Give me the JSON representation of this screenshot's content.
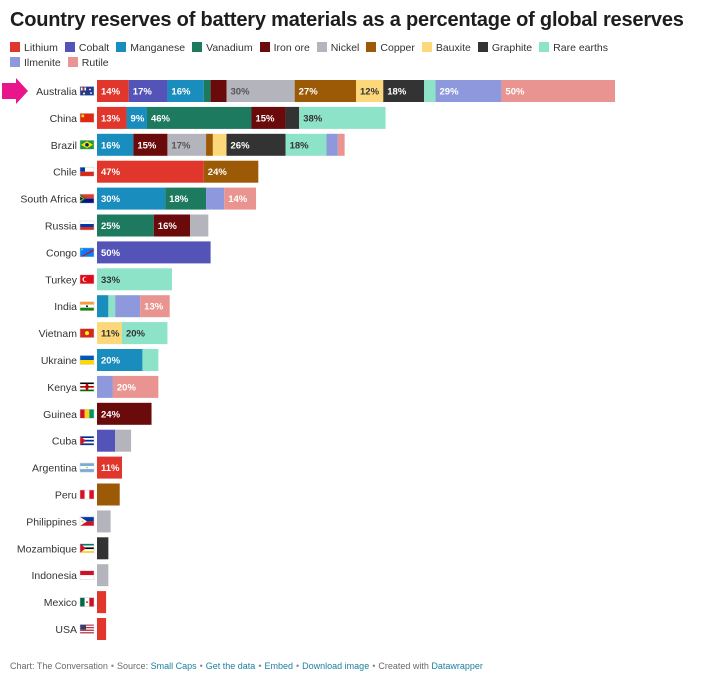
{
  "chart_data": {
    "type": "bar",
    "orientation": "horizontal",
    "stacked": true,
    "title": "Country reserves of battery materials as a percentage of global reserves",
    "legend_position": "top",
    "grid": false,
    "xlim": [
      0,
      250
    ],
    "materials": [
      "Lithium",
      "Cobalt",
      "Manganese",
      "Vanadium",
      "Iron ore",
      "Nickel",
      "Copper",
      "Bauxite",
      "Graphite",
      "Rare earths",
      "Ilmenite",
      "Rutile"
    ],
    "colors": {
      "Lithium": "#e0362c",
      "Cobalt": "#5454b8",
      "Manganese": "#1a8dbf",
      "Vanadium": "#1e7a5e",
      "Iron ore": "#6b0a0a",
      "Nickel": "#b4b4bc",
      "Copper": "#9c5a06",
      "Bauxite": "#fcd87a",
      "Graphite": "#333333",
      "Rare earths": "#8de3c8",
      "Ilmenite": "#8e99dd",
      "Rutile": "#e99490"
    },
    "label_colors": {
      "Lithium": "#ffffff",
      "Cobalt": "#ffffff",
      "Manganese": "#ffffff",
      "Vanadium": "#ffffff",
      "Iron ore": "#ffffff",
      "Nickel": "#555555",
      "Copper": "#ffffff",
      "Bauxite": "#333333",
      "Graphite": "#ffffff",
      "Rare earths": "#333333",
      "Ilmenite": "#ffffff",
      "Rutile": "#ffffff"
    },
    "countries": [
      {
        "name": "Australia",
        "flag": "Australia",
        "highlighted": true,
        "values": {
          "Lithium": 14,
          "Cobalt": 17,
          "Manganese": 16,
          "Vanadium": 3,
          "Iron ore": 7,
          "Nickel": 30,
          "Copper": 27,
          "Bauxite": 12,
          "Graphite": 18,
          "Rare earths": 5,
          "Ilmenite": 29,
          "Rutile": 50
        },
        "labels": {
          "Lithium": "14%",
          "Cobalt": "17%",
          "Manganese": "16%",
          "Nickel": "30%",
          "Copper": "27%",
          "Bauxite": "12%",
          "Graphite": "18%",
          "Ilmenite": "29%",
          "Rutile": "50%"
        }
      },
      {
        "name": "China",
        "flag": "China",
        "values": {
          "Lithium": 13,
          "Manganese": 9,
          "Vanadium": 46,
          "Iron ore": 15,
          "Graphite": 6,
          "Rare earths": 38
        },
        "labels": {
          "Lithium": "13%",
          "Manganese": "9%",
          "Vanadium": "46%",
          "Iron ore": "15%",
          "Rare earths": "38%"
        }
      },
      {
        "name": "Brazil",
        "flag": "Brazil",
        "values": {
          "Manganese": 16,
          "Iron ore": 15,
          "Nickel": 17,
          "Copper": 3,
          "Bauxite": 6,
          "Graphite": 26,
          "Rare earths": 18,
          "Ilmenite": 5,
          "Rutile": 3
        },
        "labels": {
          "Manganese": "16%",
          "Iron ore": "15%",
          "Nickel": "17%",
          "Graphite": "26%",
          "Rare earths": "18%"
        }
      },
      {
        "name": "Chile",
        "flag": "Chile",
        "values": {
          "Lithium": 47,
          "Copper": 24
        },
        "labels": {
          "Lithium": "47%",
          "Copper": "24%"
        }
      },
      {
        "name": "South Africa",
        "flag": "South Africa",
        "values": {
          "Manganese": 30,
          "Vanadium": 18,
          "Ilmenite": 8,
          "Rutile": 14
        },
        "labels": {
          "Manganese": "30%",
          "Vanadium": "18%",
          "Rutile": "14%"
        }
      },
      {
        "name": "Russia",
        "flag": "Russia",
        "values": {
          "Vanadium": 25,
          "Iron ore": 16,
          "Nickel": 8
        },
        "labels": {
          "Vanadium": "25%",
          "Iron ore": "16%"
        }
      },
      {
        "name": "Congo",
        "flag": "Congo",
        "values": {
          "Cobalt": 50
        },
        "labels": {
          "Cobalt": "50%"
        }
      },
      {
        "name": "Turkey",
        "flag": "Turkey",
        "values": {
          "Rare earths": 33
        },
        "labels": {
          "Rare earths": "33%"
        }
      },
      {
        "name": "India",
        "flag": "India",
        "values": {
          "Manganese": 5,
          "Rare earths": 3,
          "Ilmenite": 11,
          "Rutile": 13
        },
        "labels": {
          "Rutile": "13%"
        }
      },
      {
        "name": "Vietnam",
        "flag": "Vietnam",
        "values": {
          "Bauxite": 11,
          "Rare earths": 20
        },
        "labels": {
          "Bauxite": "11%",
          "Rare earths": "20%"
        }
      },
      {
        "name": "Ukraine",
        "flag": "Ukraine",
        "values": {
          "Manganese": 20,
          "Rare earths": 7
        },
        "labels": {
          "Manganese": "20%"
        }
      },
      {
        "name": "Kenya",
        "flag": "Kenya",
        "values": {
          "Ilmenite": 7,
          "Rutile": 20
        },
        "labels": {
          "Rutile": "20%"
        }
      },
      {
        "name": "Guinea",
        "flag": "Guinea",
        "values": {
          "Iron ore": 24
        },
        "labels": {
          "Iron ore": "24%"
        }
      },
      {
        "name": "Cuba",
        "flag": "Cuba",
        "values": {
          "Cobalt": 8,
          "Nickel": 7
        },
        "labels": {}
      },
      {
        "name": "Argentina",
        "flag": "Argentina",
        "values": {
          "Lithium": 11
        },
        "labels": {
          "Lithium": "11%"
        }
      },
      {
        "name": "Peru",
        "flag": "Peru",
        "values": {
          "Copper": 10
        },
        "labels": {}
      },
      {
        "name": "Philippines",
        "flag": "Philippines",
        "values": {
          "Nickel": 6
        },
        "labels": {}
      },
      {
        "name": "Mozambique",
        "flag": "Mozambique",
        "values": {
          "Graphite": 5
        },
        "labels": {}
      },
      {
        "name": "Indonesia",
        "flag": "Indonesia",
        "values": {
          "Nickel": 5
        },
        "labels": {}
      },
      {
        "name": "Mexico",
        "flag": "Mexico",
        "values": {
          "Lithium": 4
        },
        "labels": {}
      },
      {
        "name": "USA",
        "flag": "USA",
        "values": {
          "Lithium": 4
        },
        "labels": {}
      }
    ]
  },
  "footer": {
    "chart_by": "Chart: The Conversation",
    "source_prefix": "Source:",
    "source": "Small Caps",
    "get_data": "Get the data",
    "embed": "Embed",
    "download": "Download image",
    "created_with": "Created with",
    "datawrapper": "Datawrapper"
  },
  "highlight_color": "#e8168a"
}
